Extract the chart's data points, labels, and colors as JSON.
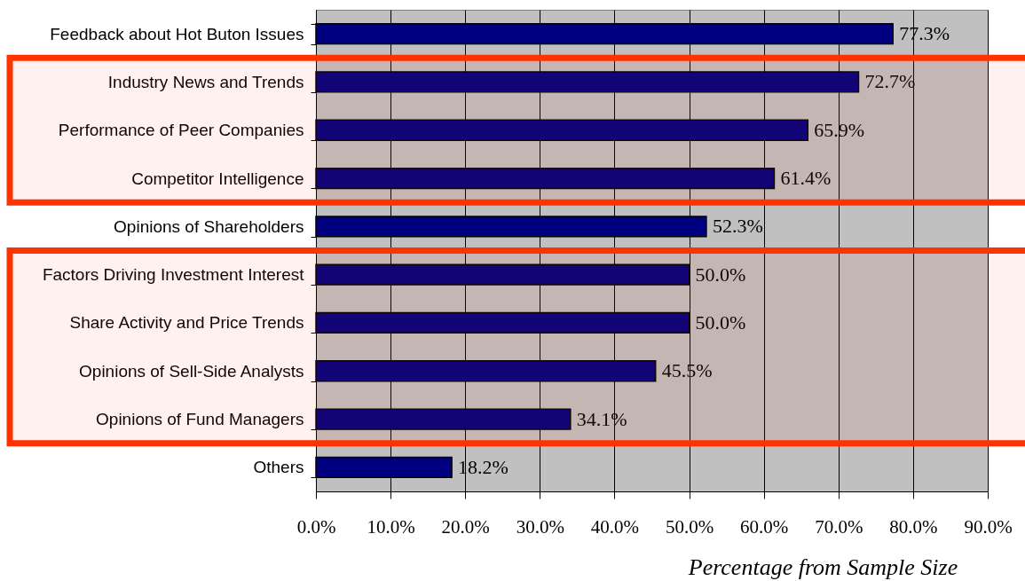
{
  "chart_data": {
    "type": "bar",
    "orientation": "horizontal",
    "xlabel": "Percentage from Sample Size",
    "categories": [
      "Feedback about Hot Buton Issues",
      "Industry News and Trends",
      "Performance of Peer Companies",
      "Competitor Intelligence",
      "Opinions of Shareholders",
      "Factors Driving Investment Interest",
      "Share Activity and Price Trends",
      "Opinions of Sell-Side Analysts",
      "Opinions of Fund Managers",
      "Others"
    ],
    "values": [
      77.3,
      72.7,
      65.9,
      61.4,
      52.3,
      50.0,
      50.0,
      45.5,
      34.1,
      18.2
    ],
    "value_labels": [
      "77.3%",
      "72.7%",
      "65.9%",
      "61.4%",
      "52.3%",
      "50.0%",
      "50.0%",
      "45.5%",
      "34.1%",
      "18.2%"
    ],
    "color": "#000080",
    "xlim": [
      0,
      90
    ],
    "xticks": [
      {
        "value": 0,
        "label": "0.0%"
      },
      {
        "value": 10,
        "label": "10.0%"
      },
      {
        "value": 20,
        "label": "20.0%"
      },
      {
        "value": 30,
        "label": "30.0%"
      },
      {
        "value": 40,
        "label": "40.0%"
      },
      {
        "value": 50,
        "label": "50.0%"
      },
      {
        "value": 60,
        "label": "60.0%"
      },
      {
        "value": 70,
        "label": "70.0%"
      },
      {
        "value": 80,
        "label": "80.0%"
      },
      {
        "value": 90,
        "label": "90.0%"
      }
    ],
    "grid": "x",
    "bands": [
      {
        "axis": "y",
        "from": "Industry News and Trends",
        "to": "Competitor Intelligence",
        "color": "#ff3300"
      },
      {
        "axis": "y",
        "from": "Factors Driving Investment Interest",
        "to": "Opinions of Fund Managers",
        "color": "#ff3300"
      }
    ]
  }
}
